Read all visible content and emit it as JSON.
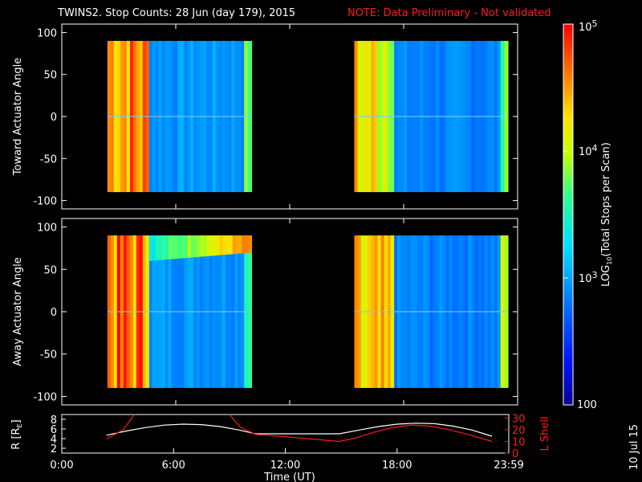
{
  "chart_data": {
    "type": "heatmap",
    "title": "TWINS2. Stop Counts: 28 Jun (day 179), 2015",
    "note": "NOTE: Data Preliminary - Not validated",
    "xlabel": "Time (UT)",
    "x_ticks": [
      "0:00",
      "6:00",
      "12:00",
      "18:00",
      "23:59"
    ],
    "x_tick_hours": [
      0,
      6,
      12,
      18,
      24
    ],
    "xlim_hours": [
      0,
      24
    ],
    "panels": [
      {
        "ylabel": "Toward Actuator Angle",
        "ylim": [
          -110,
          110
        ],
        "y_ticks": [
          100,
          50,
          0,
          -50,
          -100
        ],
        "y_tick_labels": [
          "100",
          "50",
          "0",
          "-50",
          "-100"
        ],
        "angle_range": [
          -90,
          90
        ],
        "segments": [
          {
            "start_hour": 2.4,
            "end_hour": 10.0,
            "bands": [
              {
                "start_hour": 2.4,
                "end_hour": 4.6,
                "log10_counts": 4.55
              },
              {
                "start_hour": 4.6,
                "end_hour": 9.6,
                "log10_counts": 2.95
              },
              {
                "start_hour": 9.6,
                "end_hour": 10.0,
                "log10_counts": 3.75
              }
            ]
          },
          {
            "start_hour": 15.4,
            "end_hour": 23.5,
            "bands": [
              {
                "start_hour": 15.4,
                "end_hour": 17.5,
                "log10_counts": 4.2
              },
              {
                "start_hour": 17.5,
                "end_hour": 23.1,
                "log10_counts": 2.85
              },
              {
                "start_hour": 23.1,
                "end_hour": 23.5,
                "log10_counts": 4.0
              }
            ]
          }
        ]
      },
      {
        "ylabel": "Away Actuator Angle",
        "ylim": [
          -110,
          110
        ],
        "y_ticks": [
          100,
          50,
          0,
          -50,
          -100
        ],
        "y_tick_labels": [
          "100",
          "50",
          "0",
          "-50",
          "-100"
        ],
        "angle_range": [
          -90,
          90
        ],
        "segments": [
          {
            "start_hour": 2.4,
            "end_hour": 10.0,
            "bands": [
              {
                "start_hour": 2.4,
                "end_hour": 4.6,
                "log10_counts": 4.6
              },
              {
                "start_hour": 4.6,
                "end_hour": 9.6,
                "log10_counts": 2.95
              },
              {
                "start_hour": 9.6,
                "end_hour": 10.0,
                "log10_counts": 3.6
              }
            ],
            "high_angle_enhancement": {
              "angle_range": [
                60,
                90
              ],
              "start_hour": 4.6,
              "end_hour": 10.0,
              "log10_counts": 4.3
            }
          },
          {
            "start_hour": 15.4,
            "end_hour": 23.5,
            "bands": [
              {
                "start_hour": 15.4,
                "end_hour": 17.5,
                "log10_counts": 4.15
              },
              {
                "start_hour": 17.5,
                "end_hour": 23.1,
                "log10_counts": 2.85
              },
              {
                "start_hour": 23.1,
                "end_hour": 23.5,
                "log10_counts": 4.0
              }
            ]
          }
        ]
      }
    ],
    "colorbar": {
      "label": "LOG10(Total Stops per Scan)",
      "label_parts": [
        "LOG",
        "10",
        "(Total Stops per Scan)"
      ],
      "range": [
        2,
        5
      ],
      "ticks": [
        {
          "value": 5,
          "base": "10",
          "exp": "5"
        },
        {
          "value": 4,
          "base": "10",
          "exp": "4"
        },
        {
          "value": 3,
          "base": "10",
          "exp": "3"
        }
      ],
      "min_label": "100"
    },
    "orbit": {
      "ylabel_left": "R [RE]",
      "ylabel_left_parts": [
        "R [R",
        "E",
        "]"
      ],
      "ylabel_right": "L Shell",
      "left_ylim": [
        1,
        9
      ],
      "left_ticks": [
        8,
        6,
        4,
        2
      ],
      "left_tick_labels": [
        "8",
        "6",
        "4",
        "2"
      ],
      "right_ylim": [
        0,
        33
      ],
      "right_ticks": [
        30,
        20,
        10,
        0
      ],
      "right_tick_labels": [
        "30",
        "20",
        "10",
        "0"
      ],
      "r_series": {
        "name": "R",
        "color": "#ffffff",
        "x": [
          2.4,
          3.5,
          4.5,
          5.5,
          6.5,
          7.5,
          8.5,
          9.5,
          10.4,
          12,
          13.5,
          14.9,
          16,
          17,
          18,
          19,
          20,
          21,
          22,
          23.1
        ],
        "y": [
          4.7,
          5.6,
          6.3,
          6.8,
          7.0,
          6.9,
          6.5,
          5.8,
          5.0,
          5.0,
          5.0,
          5.0,
          5.8,
          6.5,
          7.0,
          7.2,
          7.1,
          6.6,
          5.8,
          4.5
        ]
      },
      "l_series": {
        "name": "L Shell",
        "color": "#ff1a1a",
        "segments": [
          {
            "x": [
              2.4,
              3.3,
              3.9
            ],
            "y": [
              12,
              20,
              33
            ]
          },
          {
            "x": [
              9.0,
              9.6,
              10.4
            ],
            "y": [
              33,
              22,
              16
            ]
          },
          {
            "x": [
              10.4,
              12,
              14.9,
              15.8,
              16.8,
              17.8,
              18.8,
              19.8,
              20.8,
              21.8,
              23.1
            ],
            "y": [
              16,
              14,
              10,
              13,
              18,
              22,
              24,
              23,
              20,
              16,
              10
            ]
          }
        ]
      }
    },
    "date_stamp": "10 Jul 15"
  }
}
